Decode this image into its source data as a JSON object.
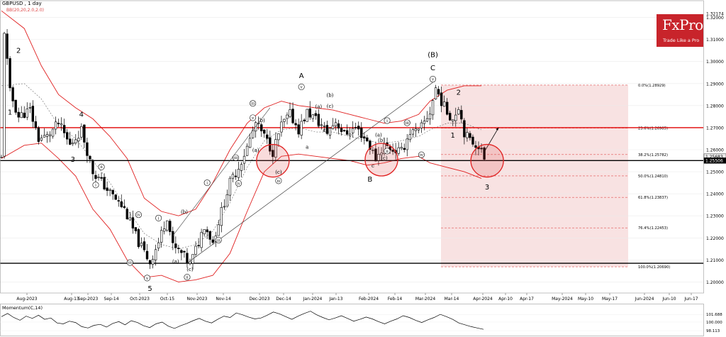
{
  "header": {
    "symbol_line": "GBPUSD , 1 day",
    "indicator_line": "BB(20,20,2.0,2.0)",
    "momentum_line": "Momentum(C,14)"
  },
  "logo": {
    "brand": "FxPro",
    "tagline": "Trade Like a Pro"
  },
  "colors": {
    "bullish": "#000000",
    "bearish": "#000000",
    "bands": "#e02020",
    "midline": "#000000",
    "red_level": "#e00000",
    "black_level": "#000000",
    "fib_zone": "#f6d8d8",
    "momentum": "#000000"
  },
  "chart_data": [
    {
      "type": "candlestick",
      "title": "GBPUSD , 1 day",
      "y_axis": {
        "ticks": [
          1.2,
          1.21,
          1.22,
          1.23,
          1.24,
          1.25,
          1.26,
          1.27,
          1.28,
          1.29,
          1.3,
          1.31,
          1.32
        ],
        "tick_labels": [
          "1.20000",
          "1.21000",
          "1.22000",
          "1.23000",
          "1.24000",
          "1.25000",
          "1.26000",
          "1.27000",
          "1.28000",
          "1.29000",
          "1.30000",
          "1.31000",
          "1.32000"
        ],
        "ylim": [
          1.195,
          1.325
        ]
      },
      "x_axis": {
        "labels": [
          "Aug-2023",
          "Aug-13",
          "Sep-2023",
          "Sep-14",
          "Oct-2023",
          "Oct-15",
          "Nov-2023",
          "Nov-14",
          "Dec-2023",
          "Dec-14",
          "Jan-2024",
          "Jan-13",
          "Feb-2024",
          "Feb-14",
          "Mar-2024",
          "Mar-14",
          "Apr-2024",
          "Apr-10",
          "Apr-17",
          "May-2024",
          "May-10",
          "May-17",
          "Jun-2024",
          "Jun-10",
          "Jun-17"
        ]
      },
      "close_path": [
        [
          1,
          1.314
        ],
        [
          3,
          1.286
        ],
        [
          6,
          1.275
        ],
        [
          10,
          1.278
        ],
        [
          13,
          1.265
        ],
        [
          16,
          1.266
        ],
        [
          20,
          1.272
        ],
        [
          24,
          1.262
        ],
        [
          28,
          1.269
        ],
        [
          32,
          1.25
        ],
        [
          37,
          1.242
        ],
        [
          43,
          1.233
        ],
        [
          48,
          1.218
        ],
        [
          52,
          1.209
        ],
        [
          55,
          1.218
        ],
        [
          58,
          1.23
        ],
        [
          60,
          1.216
        ],
        [
          63,
          1.213
        ],
        [
          66,
          1.208
        ],
        [
          69,
          1.218
        ],
        [
          71,
          1.226
        ],
        [
          74,
          1.218
        ],
        [
          77,
          1.232
        ],
        [
          80,
          1.245
        ],
        [
          83,
          1.252
        ],
        [
          86,
          1.261
        ],
        [
          89,
          1.272
        ],
        [
          92,
          1.266
        ],
        [
          95,
          1.259
        ],
        [
          98,
          1.271
        ],
        [
          101,
          1.276
        ],
        [
          104,
          1.269
        ],
        [
          107,
          1.277
        ],
        [
          110,
          1.274
        ],
        [
          114,
          1.268
        ],
        [
          117,
          1.273
        ],
        [
          120,
          1.267
        ],
        [
          124,
          1.27
        ],
        [
          128,
          1.264
        ],
        [
          131,
          1.256
        ],
        [
          134,
          1.262
        ],
        [
          137,
          1.26
        ],
        [
          140,
          1.259
        ],
        [
          143,
          1.268
        ],
        [
          146,
          1.268
        ],
        [
          150,
          1.277
        ],
        [
          152,
          1.288
        ],
        [
          154,
          1.282
        ],
        [
          156,
          1.277
        ],
        [
          158,
          1.274
        ],
        [
          160,
          1.28
        ],
        [
          162,
          1.268
        ],
        [
          164,
          1.264
        ],
        [
          167,
          1.262
        ],
        [
          169,
          1.256
        ]
      ],
      "upper_band": [
        [
          0,
          1.323
        ],
        [
          8,
          1.315
        ],
        [
          14,
          1.298
        ],
        [
          20,
          1.285
        ],
        [
          26,
          1.279
        ],
        [
          32,
          1.274
        ],
        [
          38,
          1.266
        ],
        [
          44,
          1.256
        ],
        [
          50,
          1.238
        ],
        [
          56,
          1.232
        ],
        [
          62,
          1.23
        ],
        [
          68,
          1.233
        ],
        [
          74,
          1.245
        ],
        [
          80,
          1.26
        ],
        [
          86,
          1.272
        ],
        [
          92,
          1.279
        ],
        [
          98,
          1.282
        ],
        [
          104,
          1.28
        ],
        [
          110,
          1.279
        ],
        [
          116,
          1.278
        ],
        [
          122,
          1.276
        ],
        [
          128,
          1.274
        ],
        [
          134,
          1.272
        ],
        [
          140,
          1.273
        ],
        [
          146,
          1.276
        ],
        [
          150,
          1.282
        ],
        [
          156,
          1.287
        ],
        [
          162,
          1.289
        ],
        [
          168,
          1.289
        ]
      ],
      "lower_band": [
        [
          0,
          1.256
        ],
        [
          8,
          1.262
        ],
        [
          14,
          1.263
        ],
        [
          20,
          1.256
        ],
        [
          26,
          1.248
        ],
        [
          32,
          1.233
        ],
        [
          38,
          1.224
        ],
        [
          44,
          1.21
        ],
        [
          50,
          1.202
        ],
        [
          56,
          1.203
        ],
        [
          62,
          1.2
        ],
        [
          68,
          1.201
        ],
        [
          74,
          1.203
        ],
        [
          80,
          1.213
        ],
        [
          86,
          1.232
        ],
        [
          92,
          1.25
        ],
        [
          98,
          1.257
        ],
        [
          104,
          1.258
        ],
        [
          110,
          1.257
        ],
        [
          116,
          1.256
        ],
        [
          122,
          1.255
        ],
        [
          128,
          1.253
        ],
        [
          134,
          1.254
        ],
        [
          140,
          1.256
        ],
        [
          146,
          1.257
        ],
        [
          150,
          1.254
        ],
        [
          156,
          1.252
        ],
        [
          162,
          1.25
        ],
        [
          168,
          1.247
        ]
      ],
      "middle_band": [
        [
          0,
          1.289
        ],
        [
          8,
          1.29
        ],
        [
          14,
          1.283
        ],
        [
          20,
          1.271
        ],
        [
          26,
          1.265
        ],
        [
          32,
          1.255
        ],
        [
          38,
          1.245
        ],
        [
          44,
          1.233
        ],
        [
          50,
          1.222
        ],
        [
          56,
          1.217
        ],
        [
          62,
          1.215
        ],
        [
          68,
          1.217
        ],
        [
          74,
          1.223
        ],
        [
          80,
          1.236
        ],
        [
          86,
          1.252
        ],
        [
          92,
          1.264
        ],
        [
          98,
          1.269
        ],
        [
          104,
          1.27
        ],
        [
          110,
          1.268
        ],
        [
          116,
          1.268
        ],
        [
          122,
          1.266
        ],
        [
          128,
          1.264
        ],
        [
          134,
          1.263
        ],
        [
          140,
          1.264
        ],
        [
          146,
          1.266
        ],
        [
          150,
          1.269
        ],
        [
          156,
          1.272
        ],
        [
          162,
          1.272
        ],
        [
          168,
          1.269
        ]
      ],
      "horizontal_levels": [
        {
          "price": 1.27,
          "color": "red"
        },
        {
          "price": 1.25506,
          "color": "black"
        },
        {
          "price": 1.2085,
          "color": "black"
        }
      ],
      "fibonacci": {
        "levels": [
          {
            "label": "0.0%(1.28929)",
            "price": 1.28929
          },
          {
            "label": "23.6%(1.26985)",
            "price": 1.26985
          },
          {
            "label": "38.2%(1.25782)",
            "price": 1.25782
          },
          {
            "label": "50.0%(1.24810)",
            "price": 1.2481
          },
          {
            "label": "61.8%(1.23837)",
            "price": 1.23837
          },
          {
            "label": "76.4%(1.22453)",
            "price": 1.22453
          },
          {
            "label": "100.0%(1.20690)",
            "price": 1.2069
          }
        ]
      },
      "price_tags": [
        {
          "label": "1.25683",
          "price": 1.25683
        },
        {
          "label": "1.25506",
          "price": 1.25506
        }
      ],
      "wave_labels": [
        {
          "text": "2",
          "x": 6,
          "p": 1.304
        },
        {
          "text": "1",
          "x": 3,
          "p": 1.276
        },
        {
          "text": "4",
          "x": 28,
          "p": 1.275
        },
        {
          "text": "3",
          "x": 25,
          "p": 1.2545
        },
        {
          "text": "5",
          "x": 52,
          "p": 1.196
        },
        {
          "text": "A",
          "x": 105,
          "p": 1.2925
        },
        {
          "text": "B",
          "x": 129,
          "p": 1.2455
        },
        {
          "text": "(B)",
          "x": 151,
          "p": 1.302
        },
        {
          "text": "C",
          "x": 151,
          "p": 1.296
        },
        {
          "text": "2",
          "x": 160,
          "p": 1.285
        },
        {
          "text": "1",
          "x": 158,
          "p": 1.2655
        },
        {
          "text": "3",
          "x": 170,
          "p": 1.242
        }
      ],
      "roman_labels": [
        {
          "text": "i",
          "x": 33,
          "p": 1.244
        },
        {
          "text": "ii",
          "x": 35,
          "p": 1.2522
        },
        {
          "text": "iii",
          "x": 45,
          "p": 1.2088
        },
        {
          "text": "iv",
          "x": 48,
          "p": 1.2305
        },
        {
          "text": "v",
          "x": 51,
          "p": 1.2018
        },
        {
          "text": "i",
          "x": 55,
          "p": 1.229
        },
        {
          "text": "ii",
          "x": 65,
          "p": 1.2022
        },
        {
          "text": "iii",
          "x": 76,
          "p": 1.219
        },
        {
          "text": "i",
          "x": 72,
          "p": 1.245
        },
        {
          "text": "iv",
          "x": 83,
          "p": 1.2447
        },
        {
          "text": "iii",
          "x": 82,
          "p": 1.2564
        },
        {
          "text": "iii",
          "x": 88,
          "p": 1.281
        },
        {
          "text": "v",
          "x": 88,
          "p": 1.2745
        },
        {
          "text": "iv",
          "x": 97,
          "p": 1.2459
        },
        {
          "text": "v",
          "x": 105,
          "p": 1.2885
        },
        {
          "text": "i",
          "x": 135,
          "p": 1.2732
        },
        {
          "text": "ii",
          "x": 135,
          "p": 1.2594
        },
        {
          "text": "iii",
          "x": 142,
          "p": 1.2722
        },
        {
          "text": "iv",
          "x": 147,
          "p": 1.2577
        },
        {
          "text": "v",
          "x": 151,
          "p": 1.292
        }
      ],
      "letter_labels": [
        {
          "text": "(a)",
          "x": 61,
          "p": 1.2085
        },
        {
          "text": "(b)",
          "x": 64,
          "p": 1.231
        },
        {
          "text": "(c)",
          "x": 66,
          "p": 1.205
        },
        {
          "text": "(a)",
          "x": 89,
          "p": 1.259
        },
        {
          "text": "(b)",
          "x": 91,
          "p": 1.2725
        },
        {
          "text": "(c)",
          "x": 97,
          "p": 1.249
        },
        {
          "text": "a",
          "x": 107,
          "p": 1.2605
        },
        {
          "text": "(a)",
          "x": 111,
          "p": 1.2788
        },
        {
          "text": "(b)",
          "x": 115,
          "p": 1.284
        },
        {
          "text": "(c)",
          "x": 115,
          "p": 1.279
        },
        {
          "text": "c",
          "x": 113,
          "p": 1.268
        },
        {
          "text": "b",
          "x": 111,
          "p": 1.2705
        },
        {
          "text": "(a)",
          "x": 132,
          "p": 1.266
        },
        {
          "text": "(b)",
          "x": 133,
          "p": 1.2635
        },
        {
          "text": "(c)",
          "x": 134,
          "p": 1.2555
        },
        {
          "text": "c",
          "x": 130,
          "p": 1.252
        }
      ],
      "circles": [
        {
          "x": 95,
          "p": 1.255
        },
        {
          "x": 133,
          "p": 1.2555
        },
        {
          "x": 170,
          "p": 1.255
        }
      ]
    },
    {
      "type": "line",
      "title": "Momentum(C,14)",
      "y_axis": {
        "tick_labels": [
          "101.688",
          "100.000",
          "98.113"
        ],
        "ticks": [
          101.688,
          100,
          98.113
        ],
        "ylim": [
          97.5,
          102.8
        ]
      },
      "values": [
        101.2,
        101.9,
        101.0,
        100.4,
        101.3,
        100.8,
        101.5,
        100.6,
        100.9,
        99.8,
        99.6,
        100.2,
        99.9,
        99.0,
        98.7,
        99.3,
        99.5,
        98.9,
        99.7,
        100.1,
        99.4,
        100.3,
        99.9,
        99.2,
        98.8,
        99.6,
        100.0,
        99.1,
        98.6,
        99.2,
        99.7,
        100.3,
        100.8,
        100.2,
        99.8,
        100.6,
        101.3,
        101.0,
        102.0,
        101.6,
        101.1,
        100.7,
        100.9,
        101.5,
        102.2,
        101.8,
        101.2,
        100.6,
        101.3,
        101.9,
        102.4,
        101.6,
        101.0,
        100.5,
        100.9,
        101.4,
        100.8,
        100.2,
        100.6,
        101.1,
        100.7,
        100.1,
        99.6,
        100.2,
        100.7,
        101.4,
        101.0,
        100.4,
        99.9,
        100.5,
        101.0,
        101.7,
        101.2,
        100.6,
        99.8,
        99.4,
        99.0,
        98.7,
        98.4
      ]
    }
  ]
}
